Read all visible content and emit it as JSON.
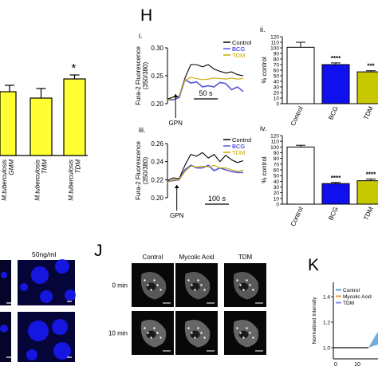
{
  "colors": {
    "yellow": "#ffff33",
    "blue": "#1010ee",
    "olive": "#c8c800",
    "bcg_trace": "#5555dd",
    "tdm_trace": "#c8a800",
    "micro_blue": "#1a1aff",
    "k_control": "#5aa0d8",
    "k_mycolic": "#e0a040",
    "k_tdm": "#8888ee"
  },
  "panel_letters": {
    "H": "H",
    "J": "J",
    "K": "K"
  },
  "panel_g": {
    "categories": [
      "M.tuberculosis GMM",
      "M.tuberculosis TMM",
      "M.tuberculosis TDM"
    ],
    "values": [
      0.8,
      0.72,
      0.96
    ],
    "errors": [
      0.08,
      0.12,
      0.05
    ],
    "significance": [
      "",
      "",
      "*"
    ]
  },
  "panel_h": {
    "sub_i": "i.",
    "sub_ii": "ii.",
    "sub_iii": "iii.",
    "sub_iv": "iv.",
    "gpn": "GPN",
    "scale_i": "50 s",
    "scale_iii": "100 s",
    "fura_ylabel": "Fura-2 Fluorescence",
    "fura_ylabel2": "(350/380)",
    "pct_ylabel": "% control",
    "legend": [
      "Control",
      "BCG",
      "TDM"
    ]
  },
  "panel_i": {
    "label_50": "50ng/ml"
  },
  "panel_j": {
    "columns": [
      "Control",
      "Mycolic Acid",
      "TDM"
    ],
    "rows": [
      "0 min",
      "10 min"
    ]
  },
  "panel_k": {
    "ylabel": "Normalized Intensity",
    "legend": [
      "Control",
      "Mycolic Acid",
      "TDM"
    ],
    "xticks": [
      "0",
      "10"
    ],
    "yticks": [
      "1.0",
      "1.2",
      "1.4"
    ]
  },
  "chart_data": [
    {
      "type": "bar",
      "panel": "G (partial)",
      "categories": [
        "M.tuberculosis GMM",
        "M.tuberculosis TMM",
        "M.tuberculosis TDM"
      ],
      "values": [
        0.8,
        0.72,
        0.96
      ],
      "errors": [
        0.08,
        0.12,
        0.05
      ],
      "annotations": [
        "",
        "",
        "*"
      ]
    },
    {
      "type": "line",
      "panel": "H i",
      "ylabel": "Fura-2 Fluorescence (350/380)",
      "ylim": [
        0.2,
        0.3
      ],
      "yticks": [
        0.2,
        0.25,
        0.3
      ],
      "x": [
        0,
        10,
        20,
        30,
        40,
        50,
        60,
        70,
        80,
        90,
        100,
        110,
        120,
        130
      ],
      "series": [
        {
          "name": "Control",
          "values": [
            0.208,
            0.212,
            0.213,
            0.246,
            0.27,
            0.27,
            0.266,
            0.27,
            0.262,
            0.258,
            0.255,
            0.257,
            0.252,
            0.25
          ]
        },
        {
          "name": "BCG",
          "values": [
            0.207,
            0.207,
            0.211,
            0.243,
            0.237,
            0.239,
            0.23,
            0.232,
            0.23,
            0.238,
            0.236,
            0.225,
            0.23,
            0.222
          ]
        },
        {
          "name": "TDM",
          "values": [
            0.206,
            0.211,
            0.214,
            0.242,
            0.247,
            0.245,
            0.243,
            0.244,
            0.246,
            0.245,
            0.244,
            0.246,
            0.244,
            0.245
          ]
        }
      ]
    },
    {
      "type": "bar",
      "panel": "H ii",
      "ylabel": "% control",
      "ylim": [
        0,
        120
      ],
      "yticks": [
        0,
        10,
        20,
        30,
        40,
        50,
        60,
        70,
        80,
        90,
        100,
        110,
        120
      ],
      "categories": [
        "Control",
        "BCG",
        "TDM"
      ],
      "values": [
        101,
        70,
        57
      ],
      "errors": [
        9,
        3,
        2
      ],
      "annotations": [
        "",
        "****",
        "***"
      ]
    },
    {
      "type": "line",
      "panel": "H iii",
      "ylabel": "Fura-2 Fluorescence (350/380)",
      "ylim": [
        0.2,
        0.26
      ],
      "yticks": [
        0.2,
        0.22,
        0.24,
        0.26
      ],
      "x": [
        0,
        10,
        20,
        30,
        40,
        50,
        60,
        70,
        80,
        90,
        100,
        110,
        120,
        130
      ],
      "series": [
        {
          "name": "Control",
          "values": [
            0.219,
            0.222,
            0.221,
            0.236,
            0.248,
            0.246,
            0.25,
            0.244,
            0.248,
            0.24,
            0.247,
            0.242,
            0.239,
            0.241
          ]
        },
        {
          "name": "BCG",
          "values": [
            0.218,
            0.219,
            0.22,
            0.231,
            0.236,
            0.233,
            0.233,
            0.236,
            0.23,
            0.233,
            0.231,
            0.229,
            0.228,
            0.228
          ]
        },
        {
          "name": "TDM",
          "values": [
            0.217,
            0.22,
            0.22,
            0.229,
            0.235,
            0.234,
            0.235,
            0.234,
            0.236,
            0.233,
            0.233,
            0.231,
            0.229,
            0.231
          ]
        }
      ]
    },
    {
      "type": "bar",
      "panel": "H iv",
      "ylabel": "% control",
      "ylim": [
        0,
        120
      ],
      "yticks": [
        0,
        10,
        20,
        30,
        40,
        50,
        60,
        70,
        80,
        90,
        100,
        110,
        120
      ],
      "categories": [
        "Control",
        "BCG",
        "TDM"
      ],
      "values": [
        100,
        36,
        41
      ],
      "errors": [
        3,
        2,
        3
      ],
      "annotations": [
        "",
        "****",
        "****"
      ]
    }
  ]
}
